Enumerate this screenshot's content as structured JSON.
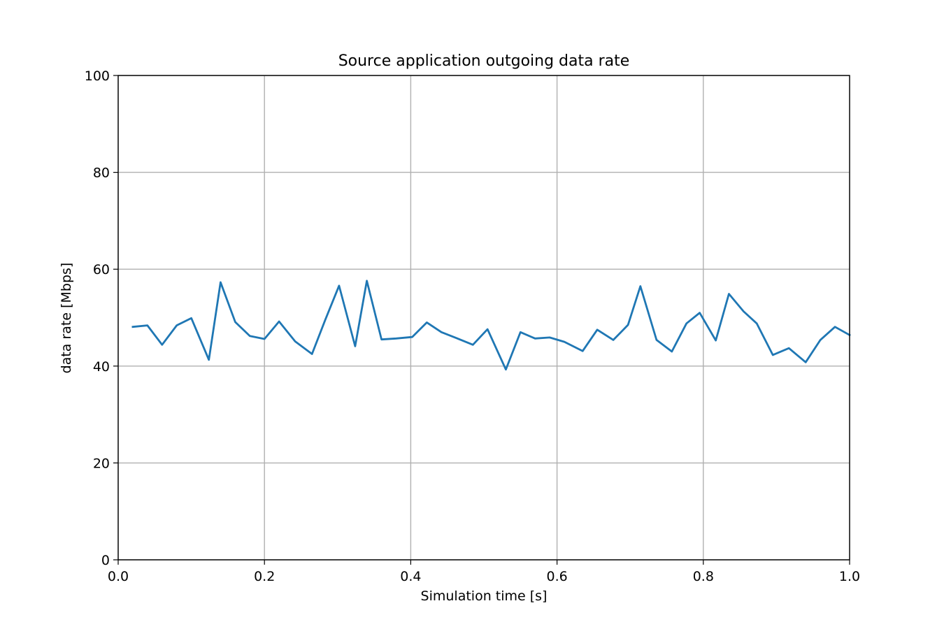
{
  "chart_data": {
    "type": "line",
    "title": "Source application outgoing data rate",
    "xlabel": "Simulation time [s]",
    "ylabel": "data rate [Mbps]",
    "xlim": [
      0.0,
      1.0
    ],
    "ylim": [
      0,
      100
    ],
    "xticks": [
      "0.0",
      "0.2",
      "0.4",
      "0.6",
      "0.8",
      "1.0"
    ],
    "yticks": [
      "0",
      "20",
      "40",
      "60",
      "80",
      "100"
    ],
    "grid": true,
    "line_color": "#1f77b4",
    "series": [
      {
        "x": [
          0.02,
          0.04,
          0.06,
          0.08,
          0.1,
          0.124,
          0.14,
          0.16,
          0.18,
          0.2,
          0.22,
          0.242,
          0.265,
          0.283,
          0.302,
          0.324,
          0.34,
          0.36,
          0.38,
          0.402,
          0.422,
          0.442,
          0.462,
          0.485,
          0.505,
          0.53,
          0.55,
          0.57,
          0.59,
          0.61,
          0.635,
          0.655,
          0.677,
          0.697,
          0.714,
          0.736,
          0.757,
          0.777,
          0.795,
          0.817,
          0.835,
          0.855,
          0.873,
          0.895,
          0.917,
          0.94,
          0.96,
          0.98,
          1.0
        ],
        "values": [
          48.1,
          48.4,
          44.4,
          48.4,
          49.9,
          41.3,
          57.3,
          49.1,
          46.2,
          45.6,
          49.2,
          45.1,
          42.5,
          49.5,
          56.6,
          44.1,
          57.6,
          45.5,
          45.7,
          46.0,
          49.0,
          47.0,
          45.8,
          44.4,
          47.6,
          39.3,
          47.0,
          45.7,
          45.9,
          45.0,
          43.1,
          47.5,
          45.4,
          48.5,
          56.5,
          45.4,
          43.0,
          48.8,
          51.0,
          45.3,
          54.9,
          51.3,
          48.8,
          42.3,
          43.7,
          40.8,
          45.4,
          48.1,
          46.4
        ]
      }
    ]
  }
}
